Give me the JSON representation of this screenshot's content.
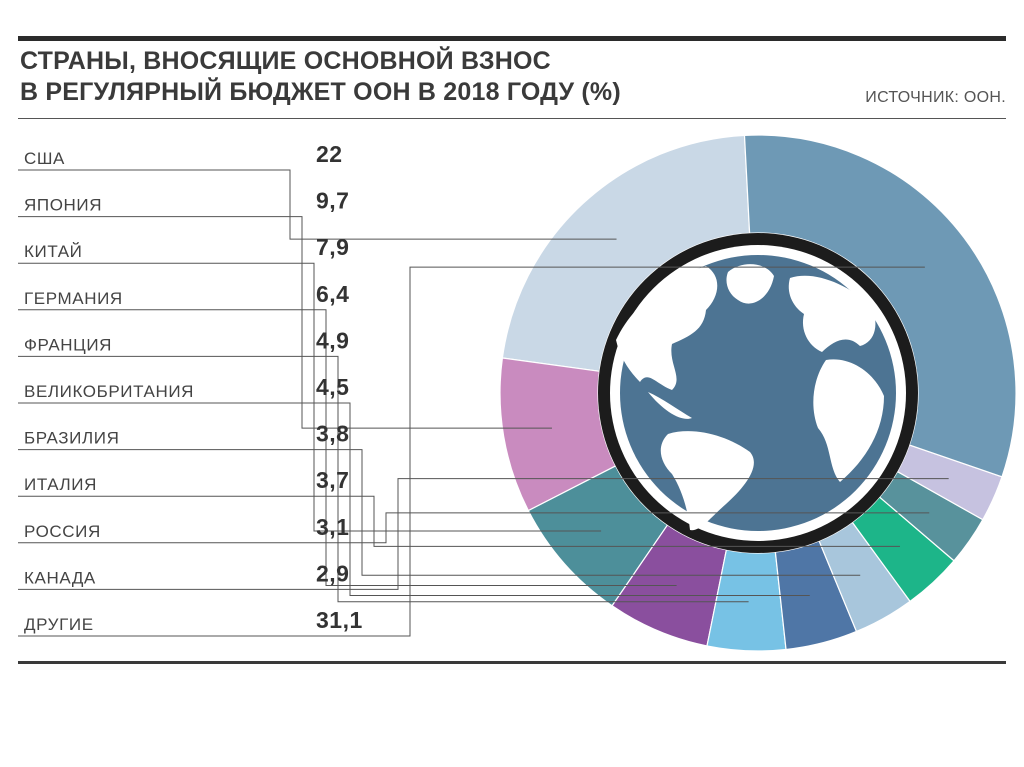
{
  "header": {
    "title_line1": "СТРАНЫ, ВНОСЯЩИЕ ОСНОВНОЙ ВЗНОС",
    "title_line2": "В РЕГУЛЯРНЫЙ БЮДЖЕТ ООН В 2018 ГОДУ (%)",
    "source": "ИСТОЧНИК: ООН."
  },
  "chart_data": {
    "type": "pie",
    "title": "СТРАНЫ, ВНОСЯЩИЕ ОСНОВНОЙ ВЗНОС В РЕГУЛЯРНЫЙ БЮДЖЕТ ООН В 2018 ГОДУ (%)",
    "categories": [
      "США",
      "ЯПОНИЯ",
      "КИТАЙ",
      "ГЕРМАНИЯ",
      "ФРАНЦИЯ",
      "ВЕЛИКОБРИТАНИЯ",
      "БРАЗИЛИЯ",
      "ИТАЛИЯ",
      "РОССИЯ",
      "КАНАДА",
      "ДРУГИЕ"
    ],
    "values": [
      22,
      9.7,
      7.9,
      6.4,
      4.9,
      4.5,
      3.8,
      3.7,
      3.1,
      2.9,
      31.1
    ],
    "value_labels": [
      "22",
      "9,7",
      "7,9",
      "6,4",
      "4,9",
      "4,5",
      "3,8",
      "3,7",
      "3,1",
      "2,9",
      "31,1"
    ],
    "colors": [
      "#c9d8e6",
      "#c98bbf",
      "#4d8f9a",
      "#8a4f9e",
      "#77c2e5",
      "#4f76a6",
      "#a8c6dc",
      "#1db589",
      "#58929c",
      "#c6c2e0",
      "#6e99b5"
    ],
    "hole": "globe",
    "legend": "left"
  }
}
